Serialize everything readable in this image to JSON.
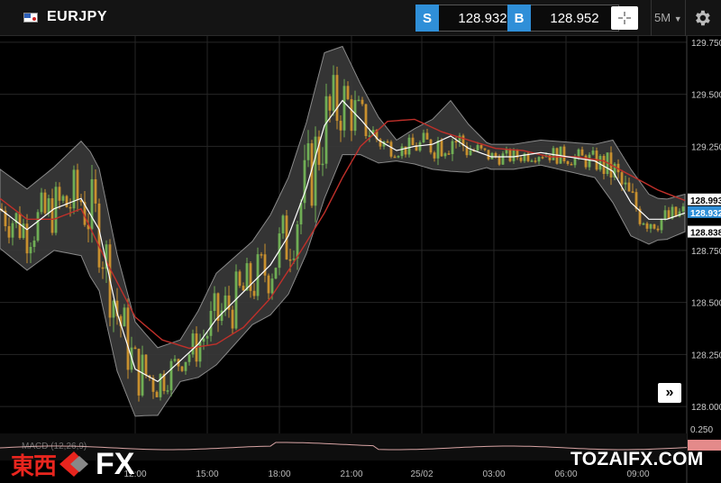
{
  "header": {
    "symbol": "EURJPY",
    "sell": {
      "tag": "S",
      "price": "128.932"
    },
    "buy": {
      "tag": "B",
      "price": "128.952"
    },
    "timeframe": "5M"
  },
  "colors": {
    "sell": "#2f8fd8",
    "buy": "#2f8fd8",
    "band": "#3a3a3a",
    "mid": "#ffffff",
    "ma": "#c0302a",
    "up": "#6fae55",
    "down": "#c8902e"
  },
  "chart_data": {
    "type": "candlestick",
    "ylim": [
      127.875,
      129.78
    ],
    "y_ticks": [
      "129.750",
      "129.500",
      "129.250",
      "128.750",
      "128.500",
      "128.250",
      "128.000"
    ],
    "x_ticks": [
      "12:00",
      "15:00",
      "18:00",
      "21:00",
      "25/02",
      "03:00",
      "06:00",
      "09:00"
    ],
    "price_labels": [
      {
        "text": "128.993",
        "value": 128.993
      },
      {
        "text": "128.932",
        "value": 128.932
      },
      {
        "text": "128.838",
        "value": 128.838
      }
    ],
    "indicator_axis": {
      "text": "0.250",
      "value": 0.25
    },
    "mid_path": [
      [
        0,
        128.95
      ],
      [
        30,
        128.85
      ],
      [
        60,
        128.95
      ],
      [
        90,
        129.0
      ],
      [
        110,
        128.85
      ],
      [
        130,
        128.45
      ],
      [
        150,
        128.18
      ],
      [
        175,
        128.12
      ],
      [
        200,
        128.22
      ],
      [
        220,
        128.3
      ],
      [
        240,
        128.42
      ],
      [
        270,
        128.55
      ],
      [
        300,
        128.68
      ],
      [
        320,
        128.82
      ],
      [
        340,
        129.05
      ],
      [
        360,
        129.35
      ],
      [
        380,
        129.47
      ],
      [
        400,
        129.38
      ],
      [
        420,
        129.28
      ],
      [
        440,
        129.23
      ],
      [
        460,
        129.25
      ],
      [
        480,
        129.26
      ],
      [
        500,
        129.3
      ],
      [
        520,
        129.24
      ],
      [
        545,
        129.2
      ],
      [
        570,
        129.2
      ],
      [
        600,
        129.22
      ],
      [
        630,
        129.2
      ],
      [
        660,
        129.18
      ],
      [
        680,
        129.13
      ],
      [
        700,
        128.98
      ],
      [
        720,
        128.9
      ],
      [
        740,
        128.9
      ],
      [
        760,
        128.93
      ]
    ],
    "band_width": [
      [
        0,
        0.19
      ],
      [
        60,
        0.2
      ],
      [
        100,
        0.3
      ],
      [
        130,
        0.28
      ],
      [
        160,
        0.2
      ],
      [
        200,
        0.1
      ],
      [
        240,
        0.22
      ],
      [
        280,
        0.2
      ],
      [
        320,
        0.28
      ],
      [
        360,
        0.35
      ],
      [
        400,
        0.17
      ],
      [
        440,
        0.05
      ],
      [
        480,
        0.12
      ],
      [
        500,
        0.17
      ],
      [
        540,
        0.06
      ],
      [
        600,
        0.06
      ],
      [
        660,
        0.08
      ],
      [
        680,
        0.15
      ],
      [
        700,
        0.16
      ],
      [
        730,
        0.1
      ],
      [
        760,
        0.09
      ]
    ],
    "ma_path": [
      [
        0,
        129.0
      ],
      [
        30,
        128.9
      ],
      [
        60,
        128.9
      ],
      [
        90,
        128.95
      ],
      [
        120,
        128.68
      ],
      [
        150,
        128.43
      ],
      [
        180,
        128.32
      ],
      [
        210,
        128.28
      ],
      [
        240,
        128.3
      ],
      [
        270,
        128.38
      ],
      [
        300,
        128.52
      ],
      [
        330,
        128.72
      ],
      [
        360,
        128.93
      ],
      [
        380,
        129.1
      ],
      [
        400,
        129.25
      ],
      [
        430,
        129.37
      ],
      [
        460,
        129.38
      ],
      [
        490,
        129.32
      ],
      [
        520,
        129.28
      ],
      [
        550,
        129.24
      ],
      [
        580,
        129.23
      ],
      [
        610,
        129.2
      ],
      [
        640,
        129.2
      ],
      [
        670,
        129.18
      ],
      [
        700,
        129.11
      ],
      [
        730,
        129.04
      ],
      [
        760,
        128.99
      ]
    ]
  },
  "macd": {
    "label": "MACD (12,26,9)"
  },
  "zoom_button": {
    "glyph": "»"
  },
  "watermark": {
    "kanji": "東西",
    "fx": "FX",
    "site": "TOZAIFX.COM"
  }
}
